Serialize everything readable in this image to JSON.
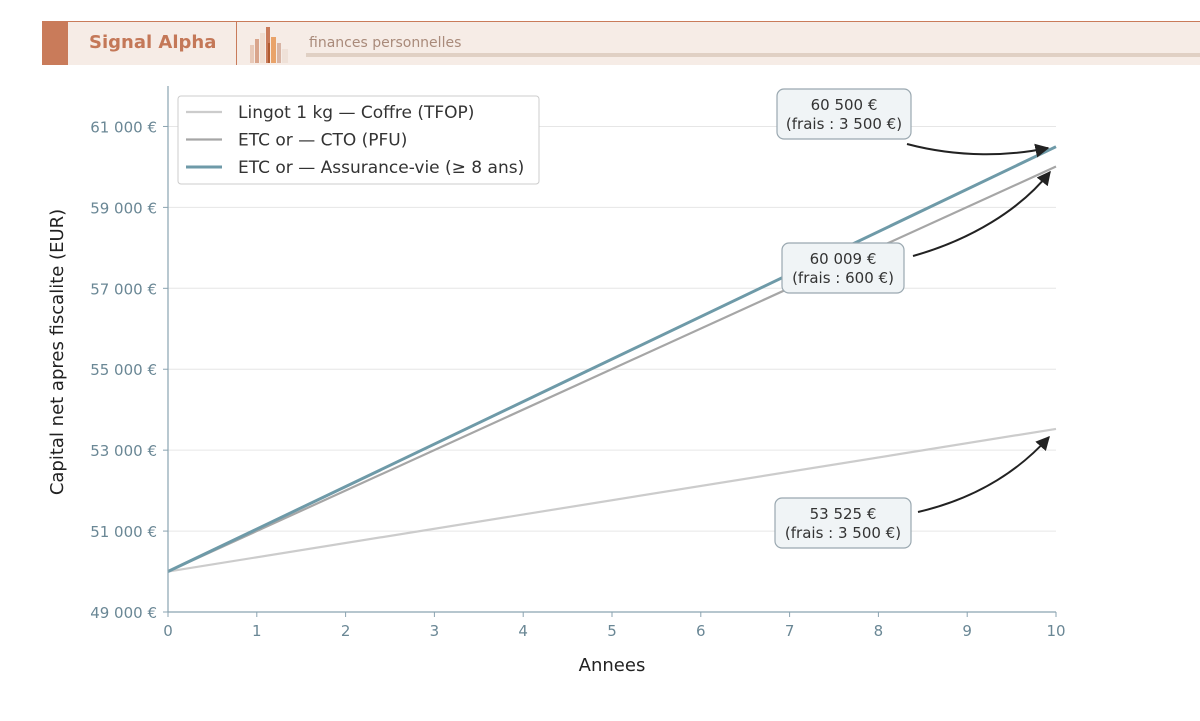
{
  "header": {
    "brand": "Signal Alpha",
    "tagline": "finances personnelles",
    "logo_icon": "bar-chart-logo-icon",
    "colors": {
      "accent": "#c97b5a",
      "band": "#f6ece6"
    }
  },
  "chart_data": {
    "type": "line",
    "xlabel": "Annees",
    "ylabel": "Capital net apres fiscalite (EUR)",
    "xlim": [
      0,
      10
    ],
    "ylim": [
      49000,
      62000
    ],
    "x_ticks": [
      0,
      1,
      2,
      3,
      4,
      5,
      6,
      7,
      8,
      9,
      10
    ],
    "x_tick_labels": [
      "0",
      "1",
      "2",
      "3",
      "4",
      "5",
      "6",
      "7",
      "8",
      "9",
      "10"
    ],
    "y_ticks": [
      49000,
      51000,
      53000,
      55000,
      57000,
      59000,
      61000
    ],
    "y_tick_labels": [
      "49 000 €",
      "51 000 €",
      "53 000 €",
      "55 000 €",
      "57 000 €",
      "59 000 €",
      "61 000 €"
    ],
    "grid": "horizontal",
    "legend_position": "top-left",
    "series": [
      {
        "name": "Lingot 1 kg — Coffre (TFOP)",
        "color": "#cccccc",
        "x": [
          0,
          10
        ],
        "y": [
          50000,
          53525
        ]
      },
      {
        "name": "ETC or — CTO (PFU)",
        "color": "#a6a6a6",
        "x": [
          0,
          10
        ],
        "y": [
          50000,
          60009
        ]
      },
      {
        "name": "ETC or — Assurance-vie (≥ 8 ans)",
        "color": "#6e9aa8",
        "x": [
          0,
          10
        ],
        "y": [
          50000,
          60500
        ]
      }
    ],
    "annotations": [
      {
        "line1": "60 500 €",
        "line2": "(frais : 3 500 €)",
        "x": 10,
        "y": 60500
      },
      {
        "line1": "60 009 €",
        "line2": "(frais : 600 €)",
        "x": 10,
        "y": 60009
      },
      {
        "line1": "53 525 €",
        "line2": "(frais : 3 500 €)",
        "x": 10,
        "y": 53525
      }
    ]
  }
}
